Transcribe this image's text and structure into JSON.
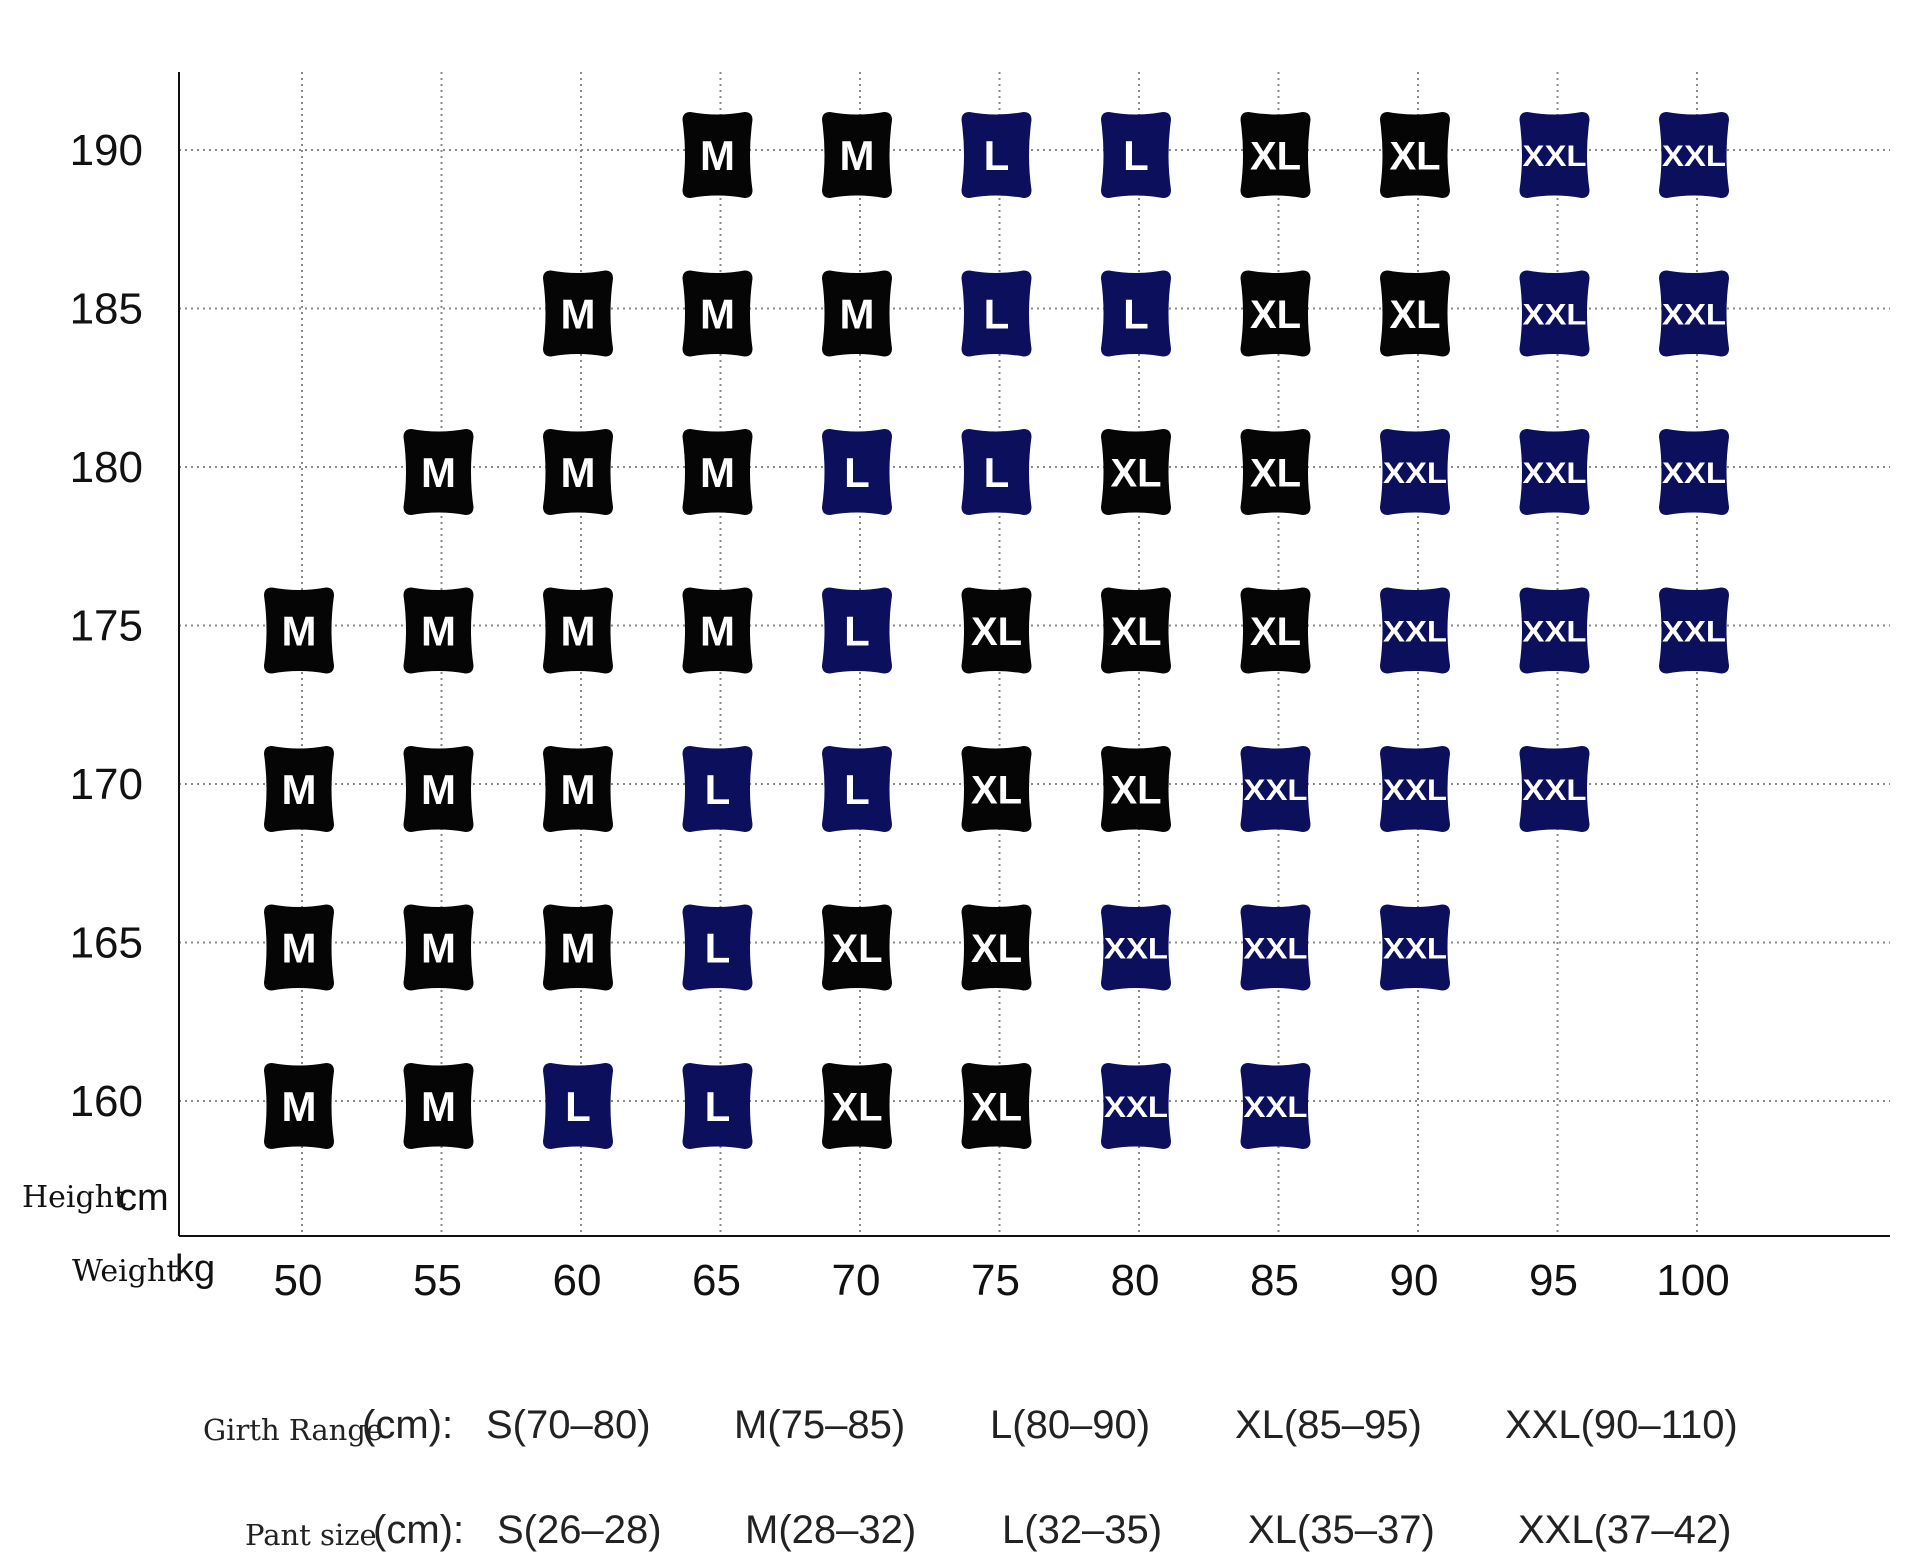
{
  "chart_data": {
    "type": "table",
    "y_axis": {
      "label": "Height",
      "unit": "cm",
      "ticks": [
        190,
        185,
        180,
        175,
        170,
        165,
        160
      ]
    },
    "x_axis": {
      "label": "Weight",
      "unit": "kg",
      "ticks": [
        50,
        55,
        60,
        65,
        70,
        75,
        80,
        85,
        90,
        95,
        100
      ]
    },
    "grid": true,
    "size_colors": {
      "M": "#050505",
      "L": "#0b0f5c",
      "XL": "#050505",
      "XXL": "#0b0f5c"
    },
    "rows": [
      {
        "height": 190,
        "sizes": [
          null,
          null,
          null,
          "M",
          "M",
          "L",
          "L",
          "XL",
          "XL",
          "XXL",
          "XXL"
        ]
      },
      {
        "height": 185,
        "sizes": [
          null,
          null,
          "M",
          "M",
          "M",
          "L",
          "L",
          "XL",
          "XL",
          "XXL",
          "XXL"
        ]
      },
      {
        "height": 180,
        "sizes": [
          null,
          "M",
          "M",
          "M",
          "L",
          "L",
          "XL",
          "XL",
          "XXL",
          "XXL",
          "XXL"
        ]
      },
      {
        "height": 175,
        "sizes": [
          "M",
          "M",
          "M",
          "M",
          "L",
          "XL",
          "XL",
          "XL",
          "XXL",
          "XXL",
          "XXL"
        ]
      },
      {
        "height": 170,
        "sizes": [
          "M",
          "M",
          "M",
          "L",
          "L",
          "XL",
          "XL",
          "XXL",
          "XXL",
          "XXL",
          null
        ]
      },
      {
        "height": 165,
        "sizes": [
          "M",
          "M",
          "M",
          "L",
          "XL",
          "XL",
          "XXL",
          "XXL",
          "XXL",
          null,
          null
        ]
      },
      {
        "height": 160,
        "sizes": [
          "M",
          "M",
          "L",
          "L",
          "XL",
          "XL",
          "XXL",
          "XXL",
          null,
          null,
          null
        ]
      }
    ]
  },
  "footer": {
    "girth": {
      "label": "Girth Range",
      "unit": "(cm):",
      "ranges": [
        "S(70–80)",
        "M(75–85)",
        "L(80–90)",
        "XL(85–95)",
        "XXL(90–110)"
      ]
    },
    "pant": {
      "label": "Pant size",
      "unit": "(cm):",
      "ranges": [
        "S(26–28)",
        "M(28–32)",
        "L(32–35)",
        "XL(35–37)",
        "XXL(37–42)"
      ]
    }
  }
}
